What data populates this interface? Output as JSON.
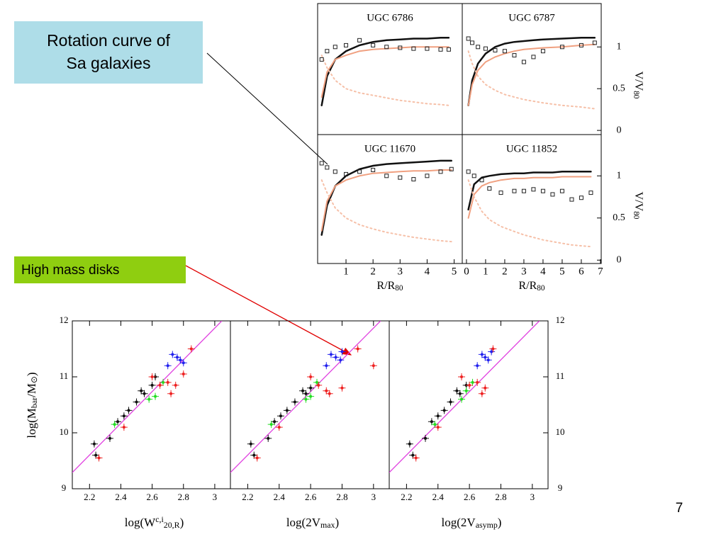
{
  "callouts": [
    {
      "text_lines": [
        "Rotation curve of",
        "Sa galaxies"
      ]
    },
    {
      "text_lines": [
        "High mass disks"
      ]
    }
  ],
  "page_number": "7",
  "rotation_panels": [
    {
      "title": "UGC 6786",
      "xlim": [
        -0.05,
        5.3
      ],
      "ylim": [
        -0.05,
        1.52
      ],
      "x": [
        0.1,
        0.3,
        0.6,
        1,
        1.5,
        2,
        2.5,
        3,
        3.5,
        4,
        4.5,
        4.8
      ],
      "observed": {
        "color": "#222222",
        "values": [
          0.85,
          0.95,
          1.0,
          1.02,
          1.08,
          1.02,
          1.0,
          0.99,
          0.98,
          0.98,
          0.97,
          0.97
        ]
      },
      "curves": [
        {
          "color": "#111111",
          "values": [
            0.3,
            0.65,
            0.85,
            0.95,
            1.02,
            1.06,
            1.08,
            1.09,
            1.1,
            1.1,
            1.11,
            1.11
          ]
        },
        {
          "color": "#f0a080",
          "values": [
            0.4,
            0.7,
            0.85,
            0.9,
            0.95,
            0.97,
            0.98,
            0.99,
            1.0,
            1.0,
            1.0,
            1.0
          ]
        },
        {
          "color": "#f6c0a8",
          "dashed": true,
          "values": [
            0.9,
            0.75,
            0.6,
            0.5,
            0.45,
            0.42,
            0.39,
            0.36,
            0.34,
            0.32,
            0.31,
            0.3
          ]
        }
      ]
    },
    {
      "title": "UGC 6787",
      "xlim": [
        -0.22,
        7.04
      ],
      "ylim": [
        -0.05,
        1.52
      ],
      "yticks": [
        0,
        0.5,
        1
      ],
      "x": [
        0.1,
        0.3,
        0.6,
        1,
        1.5,
        2,
        2.5,
        3,
        3.5,
        4,
        5,
        6,
        6.7
      ],
      "observed": {
        "color": "#222222",
        "values": [
          1.1,
          1.05,
          1.0,
          0.98,
          0.96,
          0.95,
          0.9,
          0.82,
          0.88,
          0.95,
          1.0,
          1.02,
          1.05
        ]
      },
      "curves": [
        {
          "color": "#111111",
          "values": [
            0.3,
            0.6,
            0.8,
            0.92,
            1.0,
            1.04,
            1.06,
            1.07,
            1.08,
            1.09,
            1.1,
            1.11,
            1.11
          ]
        },
        {
          "color": "#f0a080",
          "values": [
            0.3,
            0.55,
            0.72,
            0.82,
            0.88,
            0.92,
            0.95,
            0.97,
            0.98,
            0.99,
            1.0,
            1.02,
            1.03
          ]
        },
        {
          "color": "#f6c0a8",
          "dashed": true,
          "values": [
            0.95,
            0.8,
            0.65,
            0.55,
            0.48,
            0.43,
            0.4,
            0.37,
            0.35,
            0.33,
            0.3,
            0.28,
            0.26
          ]
        }
      ]
    },
    {
      "title": "UGC 11670",
      "xlim": [
        -0.05,
        5.3
      ],
      "ylim": [
        -0.04,
        1.49
      ],
      "xticks": [
        1,
        2,
        3,
        4,
        5
      ],
      "xlabel": [
        {
          "text": "R/R"
        },
        {
          "text": "80",
          "shift": "sub"
        }
      ],
      "x": [
        0.1,
        0.3,
        0.6,
        1,
        1.5,
        2,
        2.5,
        3,
        3.5,
        4,
        4.5,
        4.9
      ],
      "observed": {
        "color": "#222222",
        "values": [
          1.15,
          1.1,
          1.05,
          1.02,
          1.05,
          1.07,
          1.0,
          0.98,
          0.96,
          1.0,
          1.05,
          1.08
        ]
      },
      "curves": [
        {
          "color": "#111111",
          "values": [
            0.3,
            0.65,
            0.88,
            1.0,
            1.08,
            1.12,
            1.14,
            1.15,
            1.16,
            1.17,
            1.18,
            1.18
          ]
        },
        {
          "color": "#f0a080",
          "values": [
            0.35,
            0.7,
            0.88,
            0.95,
            1.0,
            1.03,
            1.04,
            1.05,
            1.06,
            1.06,
            1.07,
            1.07
          ]
        },
        {
          "color": "#f6c0a8",
          "dashed": true,
          "values": [
            0.95,
            0.8,
            0.62,
            0.5,
            0.42,
            0.37,
            0.33,
            0.3,
            0.27,
            0.25,
            0.23,
            0.22
          ]
        }
      ]
    },
    {
      "title": "UGC 11852",
      "xlim": [
        -0.22,
        7.04
      ],
      "ylim": [
        -0.04,
        1.49
      ],
      "yticks": [
        0,
        0.5,
        1
      ],
      "xticks": [
        0,
        1,
        2,
        3,
        4,
        5,
        6,
        7
      ],
      "xlabel": [
        {
          "text": "R/R"
        },
        {
          "text": "80",
          "shift": "sub"
        }
      ],
      "ylabel": [
        {
          "text": "V/V"
        },
        {
          "text": "80",
          "shift": "sub"
        }
      ],
      "x": [
        0.1,
        0.4,
        0.8,
        1.2,
        1.8,
        2.5,
        3,
        3.5,
        4,
        4.5,
        5,
        5.5,
        6,
        6.5
      ],
      "observed": {
        "color": "#222222",
        "values": [
          1.05,
          1.0,
          0.95,
          0.85,
          0.8,
          0.82,
          0.82,
          0.84,
          0.82,
          0.78,
          0.82,
          0.72,
          0.74,
          0.8
        ]
      },
      "curves": [
        {
          "color": "#111111",
          "values": [
            0.6,
            0.9,
            0.98,
            1.0,
            1.02,
            1.03,
            1.03,
            1.04,
            1.04,
            1.04,
            1.05,
            1.05,
            1.05,
            1.05
          ]
        },
        {
          "color": "#f0a080",
          "values": [
            0.5,
            0.78,
            0.88,
            0.92,
            0.95,
            0.97,
            0.97,
            0.98,
            0.98,
            0.98,
            0.99,
            0.99,
            0.99,
            0.99
          ]
        },
        {
          "color": "#f6c0a8",
          "dashed": true,
          "values": [
            0.95,
            0.75,
            0.58,
            0.48,
            0.4,
            0.34,
            0.3,
            0.27,
            0.24,
            0.22,
            0.2,
            0.18,
            0.17,
            0.16
          ]
        }
      ]
    }
  ],
  "chart_data": {
    "type": "scatter",
    "ylabel": [
      {
        "text": "log(M"
      },
      {
        "text": "bar",
        "shift": "sub"
      },
      {
        "text": "/M"
      },
      {
        "text": "⊙",
        "shift": "sub"
      },
      {
        "text": ")"
      }
    ],
    "xlim": [
      2.09,
      3.1
    ],
    "ylim": [
      9,
      12
    ],
    "yticks": [
      9,
      10,
      11,
      12
    ],
    "fit": {
      "color": "#e040e0",
      "x": [
        2.09,
        3.045
      ],
      "y": [
        9.29,
        12
      ]
    },
    "panels": [
      {
        "xticks": [
          2.2,
          2.4,
          2.6,
          2.8,
          3
        ],
        "xlabel": [
          {
            "text": "log(W"
          },
          {
            "text": "c,i",
            "shift": "sup"
          },
          {
            "text": "20,R",
            "shift": "sub"
          },
          {
            "text": ")"
          }
        ],
        "series": [
          {
            "color": "#111111",
            "x": [
              2.23,
              2.24,
              2.33,
              2.38,
              2.42,
              2.45,
              2.5,
              2.53,
              2.55,
              2.6,
              2.62
            ],
            "y": [
              9.8,
              9.6,
              9.9,
              10.2,
              10.3,
              10.4,
              10.55,
              10.75,
              10.7,
              10.85,
              11.0
            ]
          },
          {
            "color": "#22dd22",
            "x": [
              2.36,
              2.58,
              2.62,
              2.67
            ],
            "y": [
              10.15,
              10.6,
              10.65,
              10.9
            ]
          },
          {
            "color": "#2222ee",
            "x": [
              2.7,
              2.73,
              2.76,
              2.78,
              2.8
            ],
            "y": [
              11.2,
              11.4,
              11.35,
              11.3,
              11.25
            ]
          },
          {
            "color": "#ee2222",
            "x": [
              2.26,
              2.42,
              2.6,
              2.65,
              2.7,
              2.75,
              2.8,
              2.85,
              2.72
            ],
            "y": [
              9.55,
              10.1,
              11.0,
              10.85,
              10.9,
              10.85,
              11.05,
              11.5,
              10.7
            ]
          }
        ]
      },
      {
        "xticks": [
          2.2,
          2.4,
          2.6,
          2.8,
          3
        ],
        "xlabel": [
          {
            "text": "log(2V"
          },
          {
            "text": "max",
            "shift": "sub"
          },
          {
            "text": ")"
          }
        ],
        "series": [
          {
            "color": "#111111",
            "x": [
              2.22,
              2.24,
              2.33,
              2.37,
              2.41,
              2.45,
              2.5,
              2.55,
              2.57,
              2.6
            ],
            "y": [
              9.8,
              9.6,
              9.9,
              10.2,
              10.3,
              10.4,
              10.55,
              10.75,
              10.7,
              10.8
            ]
          },
          {
            "color": "#22dd22",
            "x": [
              2.35,
              2.57,
              2.6,
              2.64
            ],
            "y": [
              10.15,
              10.6,
              10.65,
              10.9
            ]
          },
          {
            "color": "#2222ee",
            "x": [
              2.7,
              2.73,
              2.76,
              2.79,
              2.8
            ],
            "y": [
              11.2,
              11.4,
              11.35,
              11.3,
              11.45
            ]
          },
          {
            "color": "#ee2222",
            "x": [
              2.26,
              2.4,
              2.6,
              2.65,
              2.7,
              2.8,
              2.9,
              3.0,
              2.72
            ],
            "y": [
              9.55,
              10.1,
              11.0,
              10.85,
              10.75,
              10.8,
              11.5,
              11.2,
              10.7
            ]
          }
        ]
      },
      {
        "xticks": [
          2.2,
          2.4,
          2.6,
          2.8,
          3
        ],
        "xlabel": [
          {
            "text": "log(2V"
          },
          {
            "text": "asymp",
            "shift": "sub"
          },
          {
            "text": ")"
          }
        ],
        "series": [
          {
            "color": "#111111",
            "x": [
              2.22,
              2.24,
              2.32,
              2.36,
              2.4,
              2.44,
              2.48,
              2.52,
              2.54,
              2.58
            ],
            "y": [
              9.8,
              9.6,
              9.9,
              10.2,
              10.3,
              10.4,
              10.55,
              10.75,
              10.7,
              10.85
            ]
          },
          {
            "color": "#22dd22",
            "x": [
              2.38,
              2.55,
              2.58,
              2.62
            ],
            "y": [
              10.15,
              10.6,
              10.75,
              10.9
            ]
          },
          {
            "color": "#2222ee",
            "x": [
              2.65,
              2.68,
              2.7,
              2.72,
              2.74
            ],
            "y": [
              11.2,
              11.4,
              11.35,
              11.3,
              11.45
            ]
          },
          {
            "color": "#ee2222",
            "x": [
              2.26,
              2.4,
              2.55,
              2.6,
              2.65,
              2.7,
              2.75,
              2.68
            ],
            "y": [
              9.55,
              10.1,
              11.0,
              10.85,
              10.9,
              10.8,
              11.5,
              10.7
            ]
          }
        ]
      }
    ]
  }
}
